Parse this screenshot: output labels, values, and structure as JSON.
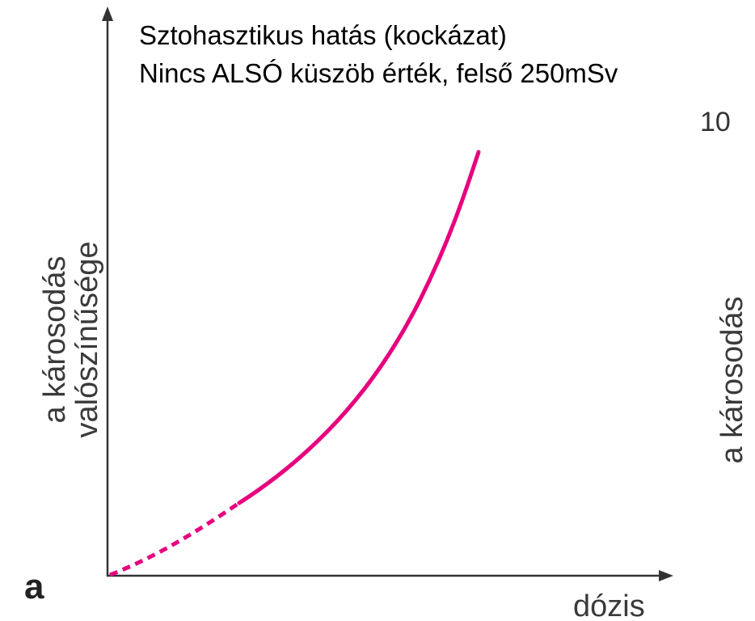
{
  "header": {
    "title": "Sztohasztikus hatás (kockázat)",
    "subtitle": "Nincs ALSÓ küszöb érték, felső 250mSv"
  },
  "diagram": {
    "panel_label": "a",
    "y_axis_label": [
      "a károsodás",
      "valószínűsége"
    ],
    "x_axis_label": "dózis"
  },
  "cropped_panel": {
    "tick_fragment": "10",
    "y_axis_label": "a károsodás"
  }
}
